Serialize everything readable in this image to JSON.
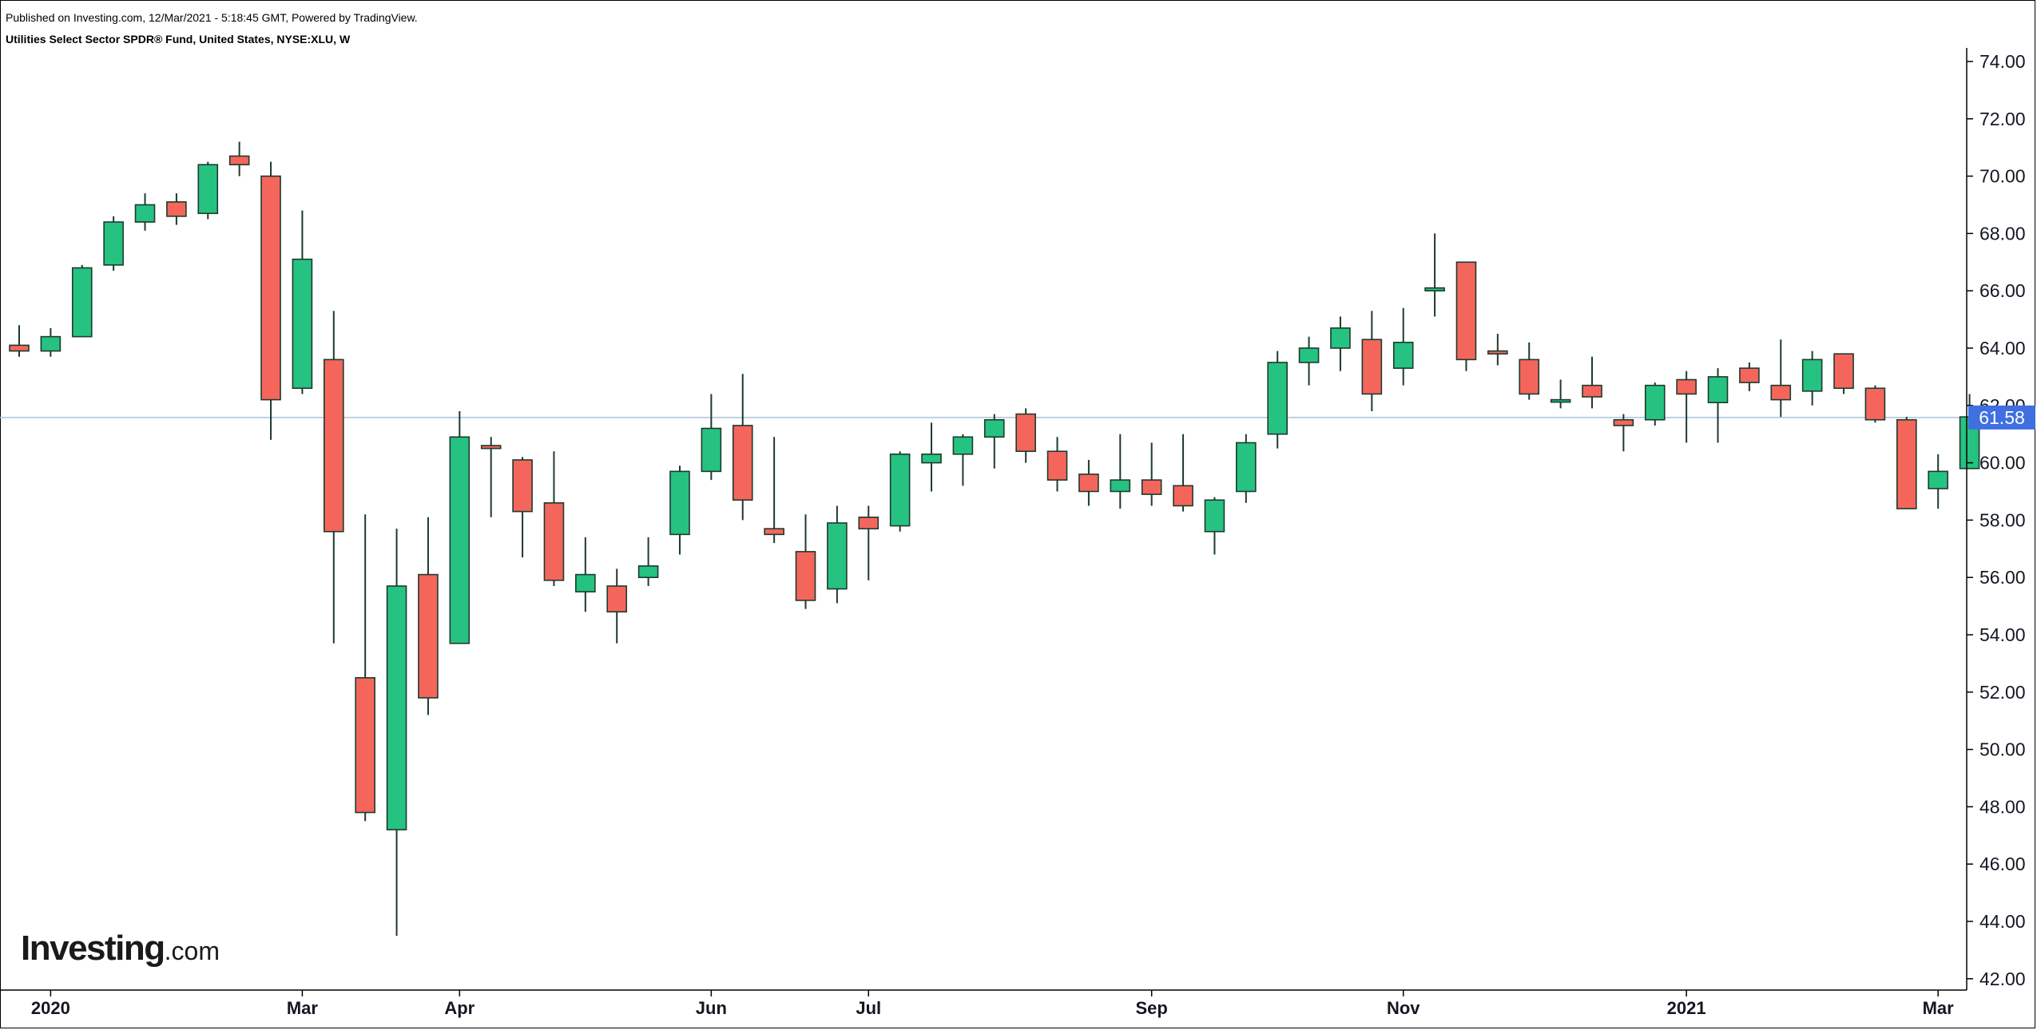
{
  "header": {
    "published": "Published on Investing.com, 12/Mar/2021 - 5:18:45 GMT, Powered by TradingView.",
    "instrument": "Utilities Select Sector SPDR® Fund, United States, NYSE:XLU, W"
  },
  "logo": {
    "main": "Investing",
    "suffix": ".com"
  },
  "colors": {
    "up": "#26c281",
    "down": "#f4665c",
    "wick": "#1d3a2e",
    "last_price_line": "#aac2d6",
    "last_price_badge": "#3f6fe0",
    "axis": "#000000"
  },
  "chart_data": {
    "type": "candlestick",
    "title": "Utilities Select Sector SPDR® Fund, United States, NYSE:XLU, W",
    "interval": "W",
    "xlabel": "",
    "ylabel": "",
    "ylim": [
      42,
      74.5
    ],
    "y_ticks": [
      "74.00",
      "72.00",
      "70.00",
      "68.00",
      "66.00",
      "64.00",
      "62.00",
      "60.00",
      "58.00",
      "56.00",
      "54.00",
      "52.00",
      "50.00",
      "48.00",
      "46.00",
      "44.00",
      "42.00"
    ],
    "x_ticks": [
      {
        "label": "2020",
        "bar": 1
      },
      {
        "label": "Mar",
        "bar": 9
      },
      {
        "label": "Apr",
        "bar": 14
      },
      {
        "label": "Jun",
        "bar": 22
      },
      {
        "label": "Jul",
        "bar": 27
      },
      {
        "label": "Sep",
        "bar": 36
      },
      {
        "label": "Nov",
        "bar": 44
      },
      {
        "label": "2021",
        "bar": 53
      },
      {
        "label": "Mar",
        "bar": 61
      }
    ],
    "last_price": 61.58,
    "last_price_label": "61.58",
    "grid": false,
    "candles": [
      {
        "o": 64.1,
        "h": 64.8,
        "l": 63.7,
        "c": 63.9
      },
      {
        "o": 63.9,
        "h": 64.7,
        "l": 63.7,
        "c": 64.4
      },
      {
        "o": 64.4,
        "h": 66.9,
        "l": 64.4,
        "c": 66.8
      },
      {
        "o": 66.9,
        "h": 68.6,
        "l": 66.7,
        "c": 68.4
      },
      {
        "o": 68.4,
        "h": 69.4,
        "l": 68.1,
        "c": 69.0
      },
      {
        "o": 69.1,
        "h": 69.4,
        "l": 68.3,
        "c": 68.6
      },
      {
        "o": 68.7,
        "h": 70.5,
        "l": 68.5,
        "c": 70.4
      },
      {
        "o": 70.7,
        "h": 71.2,
        "l": 70.0,
        "c": 70.4
      },
      {
        "o": 70.0,
        "h": 70.5,
        "l": 60.8,
        "c": 62.2
      },
      {
        "o": 62.6,
        "h": 68.8,
        "l": 62.4,
        "c": 67.1
      },
      {
        "o": 63.6,
        "h": 65.3,
        "l": 53.7,
        "c": 57.6
      },
      {
        "o": 52.5,
        "h": 58.2,
        "l": 47.5,
        "c": 47.8
      },
      {
        "o": 47.2,
        "h": 57.7,
        "l": 43.5,
        "c": 55.7
      },
      {
        "o": 56.1,
        "h": 58.1,
        "l": 51.2,
        "c": 51.8
      },
      {
        "o": 53.7,
        "h": 61.8,
        "l": 53.7,
        "c": 60.9
      },
      {
        "o": 60.6,
        "h": 60.9,
        "l": 58.1,
        "c": 60.5
      },
      {
        "o": 60.1,
        "h": 60.2,
        "l": 56.7,
        "c": 58.3
      },
      {
        "o": 58.6,
        "h": 60.4,
        "l": 55.7,
        "c": 55.9
      },
      {
        "o": 55.5,
        "h": 57.4,
        "l": 54.8,
        "c": 56.1
      },
      {
        "o": 55.7,
        "h": 56.3,
        "l": 53.7,
        "c": 54.8
      },
      {
        "o": 56.0,
        "h": 57.4,
        "l": 55.7,
        "c": 56.4
      },
      {
        "o": 57.5,
        "h": 59.9,
        "l": 56.8,
        "c": 59.7
      },
      {
        "o": 59.7,
        "h": 62.4,
        "l": 59.4,
        "c": 61.2
      },
      {
        "o": 61.3,
        "h": 63.1,
        "l": 58.0,
        "c": 58.7
      },
      {
        "o": 57.7,
        "h": 60.9,
        "l": 57.2,
        "c": 57.5
      },
      {
        "o": 56.9,
        "h": 58.2,
        "l": 54.9,
        "c": 55.2
      },
      {
        "o": 55.6,
        "h": 58.5,
        "l": 55.1,
        "c": 57.9
      },
      {
        "o": 58.1,
        "h": 58.5,
        "l": 55.9,
        "c": 57.7
      },
      {
        "o": 57.8,
        "h": 60.4,
        "l": 57.6,
        "c": 60.3
      },
      {
        "o": 60.0,
        "h": 61.4,
        "l": 59.0,
        "c": 60.3
      },
      {
        "o": 60.3,
        "h": 61.0,
        "l": 59.2,
        "c": 60.9
      },
      {
        "o": 60.9,
        "h": 61.7,
        "l": 59.8,
        "c": 61.5
      },
      {
        "o": 61.7,
        "h": 61.9,
        "l": 60.0,
        "c": 60.4
      },
      {
        "o": 60.4,
        "h": 60.9,
        "l": 59.0,
        "c": 59.4
      },
      {
        "o": 59.6,
        "h": 60.1,
        "l": 58.5,
        "c": 59.0
      },
      {
        "o": 59.0,
        "h": 61.0,
        "l": 58.4,
        "c": 59.4
      },
      {
        "o": 59.4,
        "h": 60.7,
        "l": 58.5,
        "c": 58.9
      },
      {
        "o": 59.2,
        "h": 61.0,
        "l": 58.3,
        "c": 58.5
      },
      {
        "o": 57.6,
        "h": 58.8,
        "l": 56.8,
        "c": 58.7
      },
      {
        "o": 59.0,
        "h": 61.0,
        "l": 58.6,
        "c": 60.7
      },
      {
        "o": 61.0,
        "h": 63.9,
        "l": 60.5,
        "c": 63.5
      },
      {
        "o": 63.5,
        "h": 64.4,
        "l": 62.7,
        "c": 64.0
      },
      {
        "o": 64.0,
        "h": 65.1,
        "l": 63.2,
        "c": 64.7
      },
      {
        "o": 64.3,
        "h": 65.3,
        "l": 61.8,
        "c": 62.4
      },
      {
        "o": 63.3,
        "h": 65.4,
        "l": 62.7,
        "c": 64.2
      },
      {
        "o": 66.0,
        "h": 68.0,
        "l": 65.1,
        "c": 66.1
      },
      {
        "o": 67.0,
        "h": 67.0,
        "l": 63.2,
        "c": 63.6
      },
      {
        "o": 63.9,
        "h": 64.5,
        "l": 63.4,
        "c": 63.8
      },
      {
        "o": 63.6,
        "h": 64.2,
        "l": 62.2,
        "c": 62.4
      },
      {
        "o": 62.2,
        "h": 62.9,
        "l": 61.9,
        "c": 62.2
      },
      {
        "o": 62.7,
        "h": 63.7,
        "l": 61.9,
        "c": 62.3
      },
      {
        "o": 61.5,
        "h": 61.7,
        "l": 60.4,
        "c": 61.3
      },
      {
        "o": 61.5,
        "h": 62.8,
        "l": 61.3,
        "c": 62.7
      },
      {
        "o": 62.9,
        "h": 63.2,
        "l": 60.7,
        "c": 62.4
      },
      {
        "o": 62.1,
        "h": 63.3,
        "l": 60.7,
        "c": 63.0
      },
      {
        "o": 63.3,
        "h": 63.5,
        "l": 62.5,
        "c": 62.8
      },
      {
        "o": 62.7,
        "h": 64.3,
        "l": 61.6,
        "c": 62.2
      },
      {
        "o": 62.5,
        "h": 63.9,
        "l": 62.0,
        "c": 63.6
      },
      {
        "o": 63.8,
        "h": 63.8,
        "l": 62.4,
        "c": 62.6
      },
      {
        "o": 62.6,
        "h": 62.7,
        "l": 61.4,
        "c": 61.5
      },
      {
        "o": 61.5,
        "h": 61.6,
        "l": 58.4,
        "c": 58.4
      },
      {
        "o": 59.1,
        "h": 60.3,
        "l": 58.4,
        "c": 59.7
      },
      {
        "o": 59.8,
        "h": 62.4,
        "l": 59.8,
        "c": 61.6
      }
    ]
  }
}
